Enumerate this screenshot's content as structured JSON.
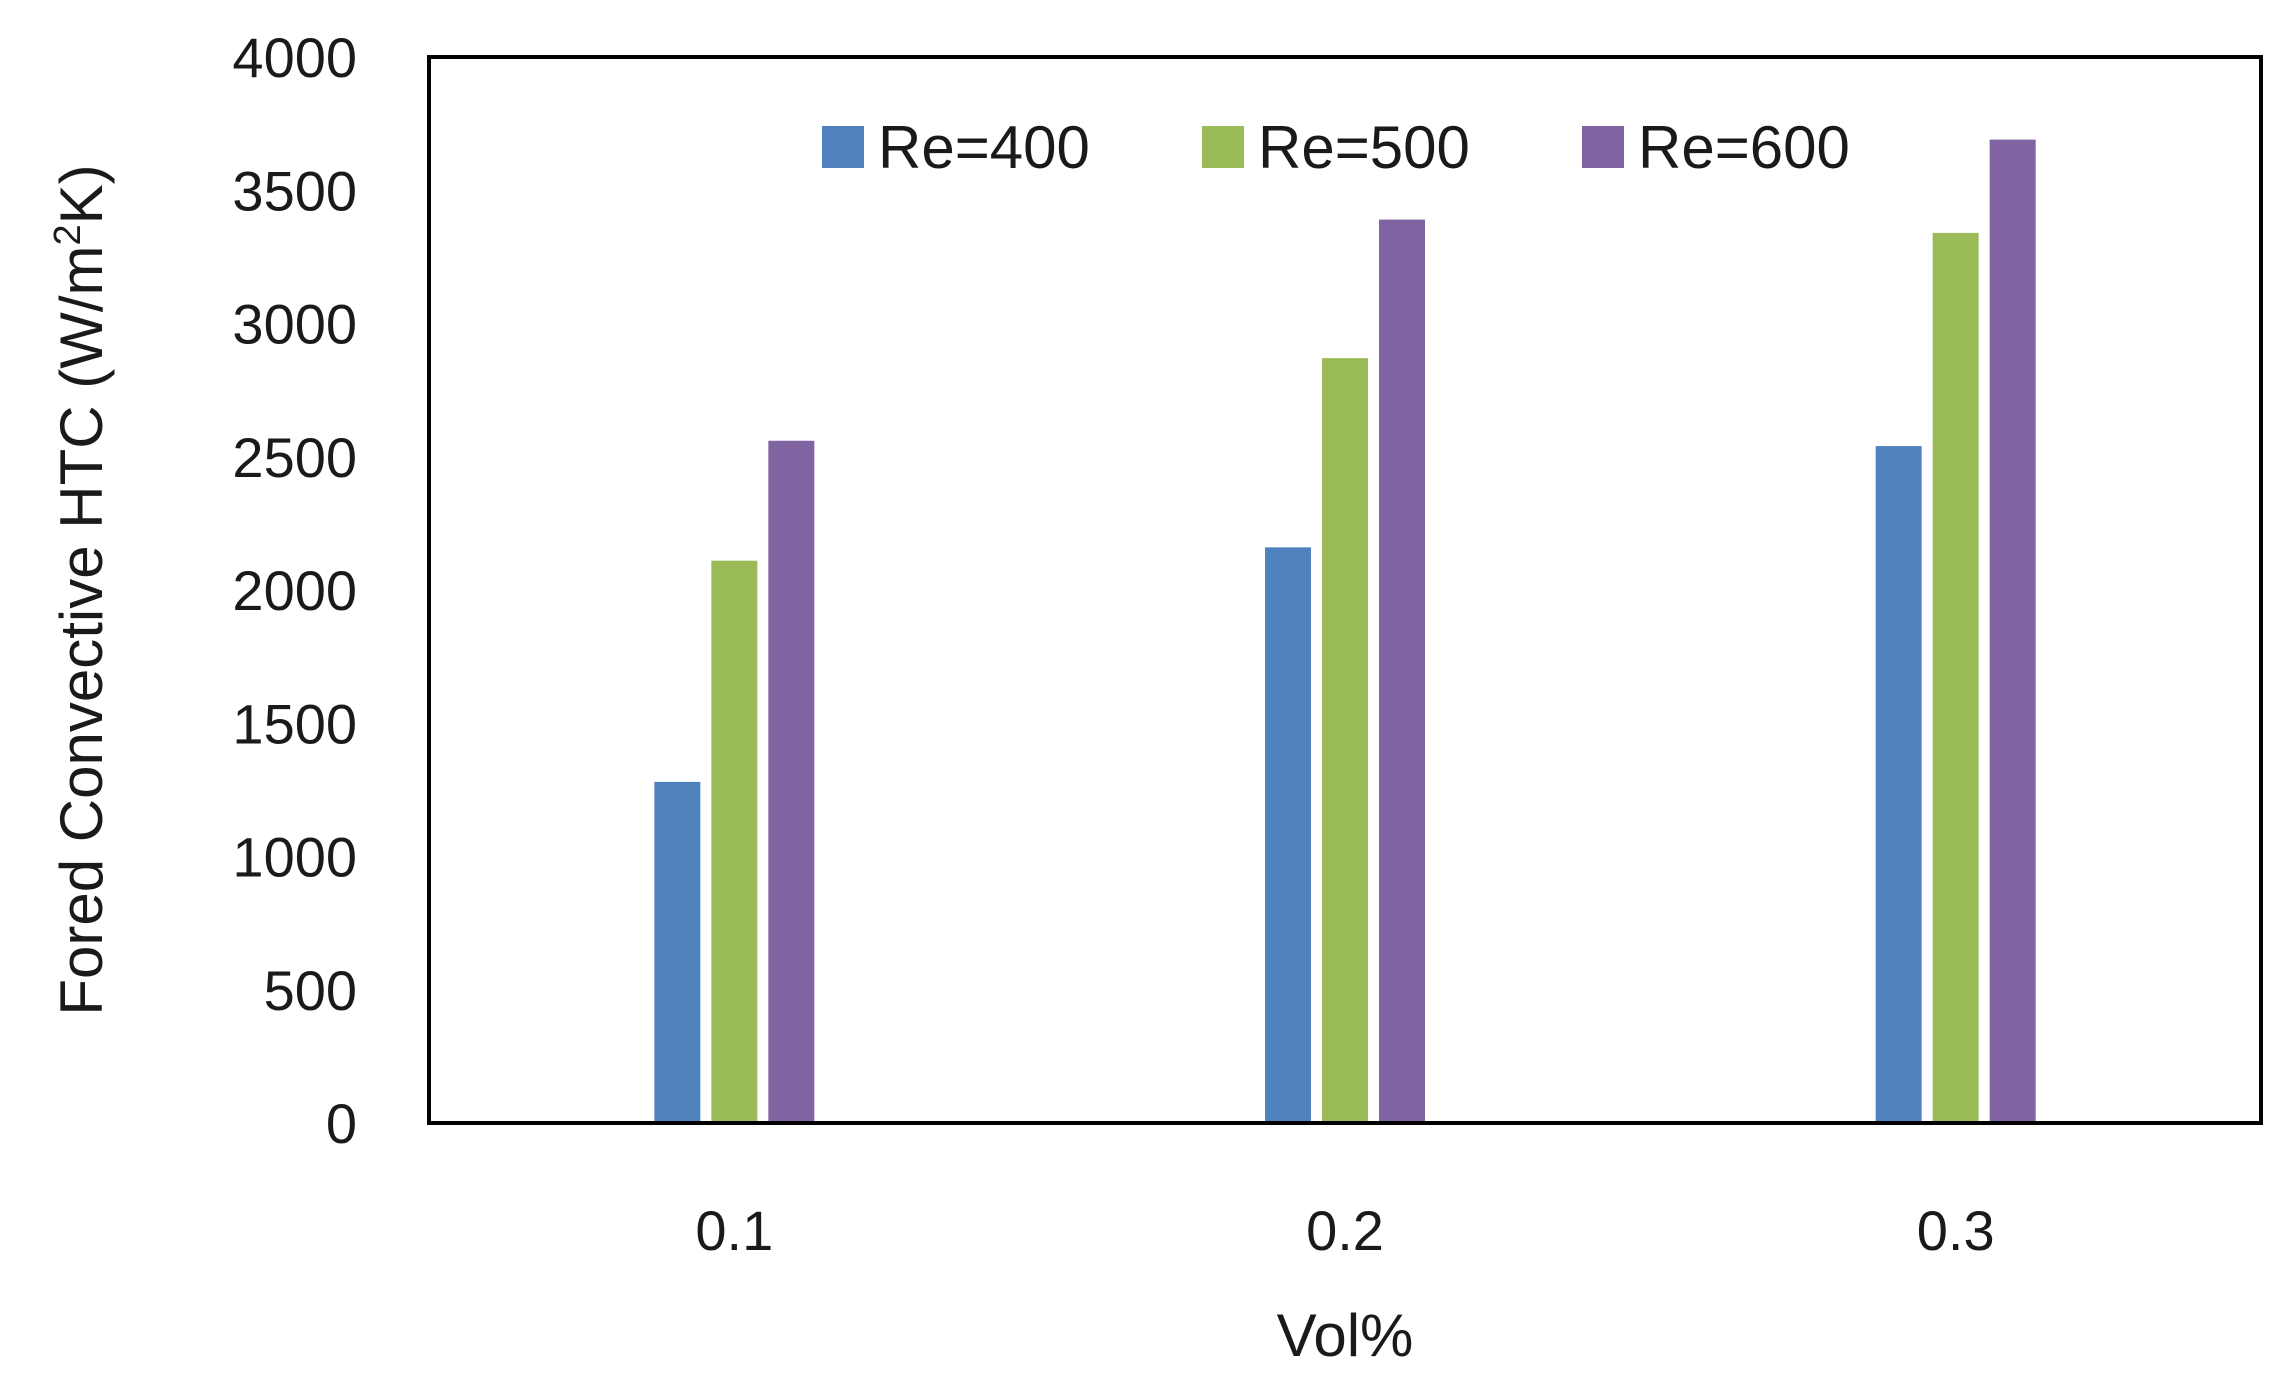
{
  "chart_data": {
    "type": "bar",
    "title": "",
    "xlabel": "Vol%",
    "ylabel": {
      "main": "Fored Convective HTC (W/m",
      "sup": "2",
      "tail": "K)"
    },
    "categories": [
      "0.1",
      "0.2",
      "0.3"
    ],
    "series": [
      {
        "name": "Re=400",
        "color": "#4F81BD",
        "values": [
          1280,
          2160,
          2540
        ]
      },
      {
        "name": "Re=500",
        "color": "#9BBB59",
        "values": [
          2110,
          2870,
          3340
        ]
      },
      {
        "name": "Re=600",
        "color": "#8064A2",
        "values": [
          2560,
          3390,
          3690
        ]
      }
    ],
    "ylim": [
      0,
      4000
    ],
    "yticks": [
      "0",
      "500",
      "1000",
      "1500",
      "2000",
      "2500",
      "3000",
      "3500",
      "4000"
    ],
    "legend_position": "top-center",
    "grid": false
  }
}
